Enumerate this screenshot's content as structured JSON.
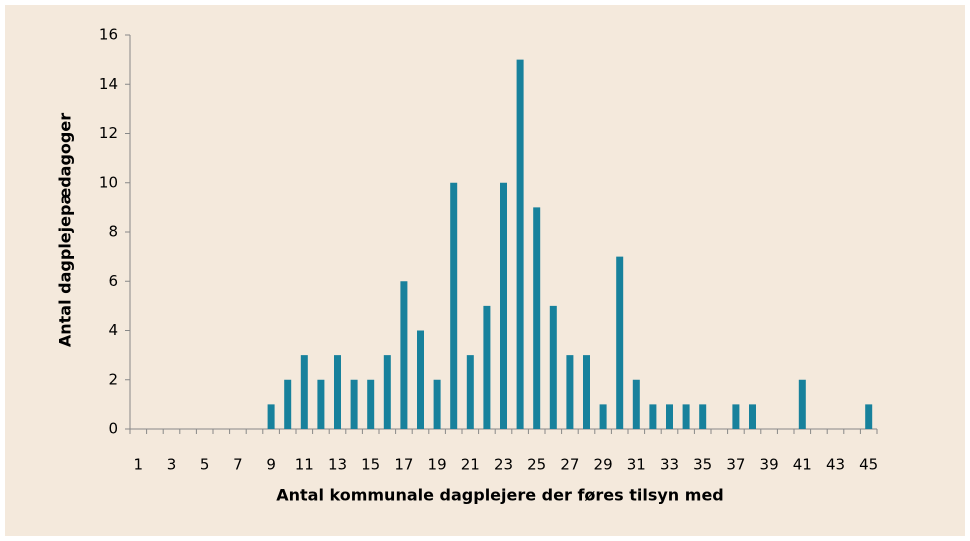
{
  "chart_data": {
    "type": "bar",
    "xlabel": "Antal kommunale dagplejere der føres tilsyn med",
    "ylabel": "Antal dagplejepædagoger",
    "categories": [
      "1",
      null,
      "3",
      null,
      "5",
      null,
      "7",
      null,
      "9",
      null,
      "11",
      null,
      "13",
      null,
      "15",
      null,
      "17",
      null,
      "19",
      null,
      "21",
      null,
      "23",
      null,
      "25",
      null,
      "27",
      null,
      "29",
      null,
      "31",
      null,
      "33",
      null,
      "35",
      null,
      "37",
      null,
      "39",
      null,
      "41",
      null,
      "43",
      null,
      "45"
    ],
    "values": [
      0,
      0,
      0,
      0,
      0,
      0,
      0,
      0,
      1,
      2,
      3,
      2,
      3,
      2,
      2,
      3,
      6,
      4,
      2,
      10,
      3,
      5,
      10,
      15,
      9,
      5,
      3,
      3,
      1,
      7,
      2,
      1,
      1,
      1,
      1,
      0,
      1,
      1,
      0,
      0,
      2,
      0,
      0,
      0,
      1
    ],
    "color": "#17819c",
    "ylim": [
      0,
      16
    ],
    "yticks": [
      0,
      2,
      4,
      6,
      8,
      10,
      12,
      14,
      16
    ],
    "grid": false
  }
}
